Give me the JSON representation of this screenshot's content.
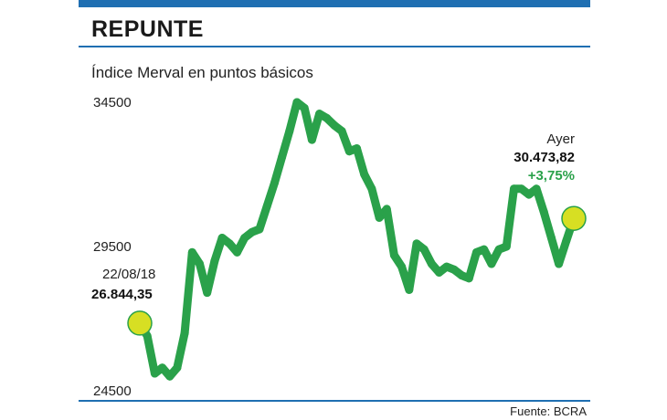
{
  "header": {
    "title": "REPUNTE",
    "subtitle": "Índice Merval en puntos básicos",
    "source": "Fuente: BCRA"
  },
  "colors": {
    "accent": "#1f6fb2",
    "line": "#2aa14a",
    "marker_fill": "#d7df23",
    "change_text": "#2aa14a"
  },
  "chart_data": {
    "type": "line",
    "title": "REPUNTE",
    "subtitle": "Índice Merval en puntos básicos",
    "xlabel": "",
    "ylabel": "",
    "ylim": [
      24500,
      34500
    ],
    "yticks": [
      "34500",
      "29500",
      "24500"
    ],
    "grid": false,
    "legend": "none",
    "series": [
      {
        "values": [
          26844,
          26400,
          25100,
          25300,
          25000,
          25300,
          26500,
          29300,
          28900,
          27900,
          29000,
          29800,
          29600,
          29300,
          29800,
          30000,
          30100,
          30900,
          31700,
          32600,
          33500,
          34500,
          34300,
          33200,
          34100,
          33950,
          33700,
          33500,
          32800,
          32900,
          32000,
          31500,
          30500,
          30800,
          29200,
          28800,
          28000,
          29600,
          29400,
          28900,
          28600,
          28800,
          28700,
          28500,
          28400,
          29300,
          29400,
          28900,
          29400,
          29500,
          31500,
          31500,
          31300,
          31500,
          30700,
          29800,
          28900,
          29700,
          30474
        ]
      }
    ],
    "annotations": {
      "start": {
        "date": "22/08/18",
        "value": "26.844,35"
      },
      "end": {
        "label": "Ayer",
        "value": "30.473,82",
        "change": "+3,75%"
      }
    }
  }
}
